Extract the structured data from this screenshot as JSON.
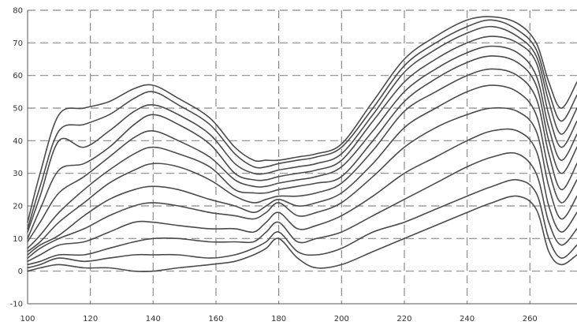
{
  "chart_data": {
    "type": "line",
    "title": "",
    "xlabel": "",
    "ylabel": "",
    "xlim": [
      100,
      275
    ],
    "ylim": [
      -10,
      80
    ],
    "grid": true,
    "x_ticks": [
      "100",
      "120",
      "140",
      "160",
      "180",
      "200",
      "220",
      "240",
      "260",
      "2"
    ],
    "y_ticks": [
      "80",
      "70",
      "60",
      "50",
      "40",
      "30",
      "20",
      "10",
      "0",
      "-10"
    ],
    "x": [
      100,
      104,
      110,
      118,
      126,
      134,
      140,
      148,
      158,
      166,
      172,
      176,
      180,
      186,
      192,
      200,
      210,
      220,
      230,
      240,
      248,
      256,
      262,
      266,
      270,
      275
    ],
    "series": [
      {
        "values": [
          15,
          30,
          48,
          50,
          52,
          56,
          57,
          53,
          47,
          38,
          34,
          34,
          34,
          35,
          36,
          39,
          52,
          65,
          72,
          77,
          78,
          76,
          70,
          58,
          50,
          58
        ]
      },
      {
        "values": [
          13,
          26,
          43,
          45,
          48,
          53,
          55,
          51,
          45,
          36,
          32,
          32,
          33,
          34,
          35,
          38,
          50,
          63,
          70,
          75,
          77,
          74,
          68,
          55,
          46,
          54
        ]
      },
      {
        "values": [
          12,
          23,
          40,
          38,
          43,
          49,
          51,
          48,
          42,
          33,
          30,
          30,
          31,
          32,
          33,
          36,
          48,
          61,
          68,
          73,
          75,
          72,
          66,
          52,
          42,
          50
        ]
      },
      {
        "values": [
          10,
          19,
          31,
          33,
          38,
          45,
          48,
          45,
          39,
          30,
          28,
          28,
          29,
          30,
          31,
          34,
          46,
          58,
          65,
          70,
          72,
          70,
          64,
          48,
          38,
          46
        ]
      },
      {
        "values": [
          9,
          15,
          24,
          29,
          35,
          41,
          43,
          40,
          35,
          28,
          26,
          26,
          27,
          28,
          29,
          32,
          43,
          55,
          62,
          67,
          69,
          67,
          60,
          44,
          34,
          42
        ]
      },
      {
        "values": [
          7,
          11,
          18,
          25,
          31,
          36,
          38,
          36,
          32,
          25,
          24,
          24,
          25,
          26,
          27,
          29,
          40,
          52,
          59,
          64,
          66,
          64,
          57,
          40,
          30,
          38
        ]
      },
      {
        "values": [
          6,
          9,
          15,
          21,
          27,
          31,
          33,
          32,
          28,
          23,
          21,
          22,
          23,
          23,
          24,
          27,
          37,
          49,
          55,
          60,
          62,
          60,
          53,
          36,
          25,
          33
        ]
      },
      {
        "values": [
          5,
          8,
          11,
          17,
          22,
          25,
          26,
          25,
          22,
          20,
          18,
          20,
          22,
          20,
          21,
          24,
          33,
          44,
          50,
          55,
          57,
          55,
          48,
          31,
          21,
          28
        ]
      },
      {
        "values": [
          4,
          7,
          10,
          13,
          17,
          20,
          21,
          20,
          18,
          17,
          16,
          18,
          21,
          17,
          18,
          21,
          29,
          38,
          44,
          48,
          50,
          49,
          43,
          26,
          16,
          23
        ]
      },
      {
        "values": [
          3,
          5,
          8,
          9,
          12,
          15,
          15,
          14,
          13,
          13,
          12,
          15,
          18,
          13,
          14,
          17,
          23,
          30,
          35,
          40,
          43,
          43,
          37,
          20,
          12,
          18
        ]
      },
      {
        "values": [
          2,
          3,
          5,
          5,
          7,
          9,
          10,
          10,
          9,
          9,
          9,
          12,
          15,
          9,
          10,
          12,
          17,
          22,
          27,
          32,
          35,
          36,
          30,
          15,
          8,
          13
        ]
      },
      {
        "values": [
          1,
          2,
          4,
          3,
          4,
          5,
          5,
          5,
          4,
          5,
          7,
          9,
          12,
          6,
          5,
          7,
          12,
          15,
          19,
          23,
          26,
          28,
          24,
          10,
          4,
          8
        ]
      },
      {
        "values": [
          0,
          1,
          2,
          1,
          1,
          0,
          0,
          1,
          2,
          3,
          5,
          7,
          10,
          4,
          1,
          2,
          6,
          10,
          14,
          18,
          21,
          23,
          19,
          6,
          2,
          5
        ]
      }
    ]
  }
}
